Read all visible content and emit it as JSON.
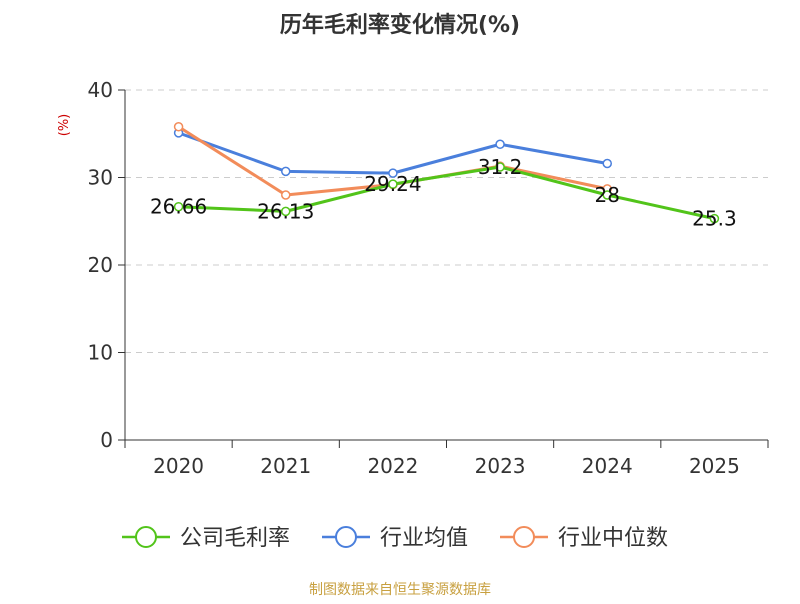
{
  "chart_data": {
    "type": "line",
    "title": "历年毛利率变化情况(%)",
    "ylabel": "(%)",
    "categories": [
      "2020",
      "2021",
      "2022",
      "2023",
      "2024",
      "2025"
    ],
    "ylim": [
      0,
      40
    ],
    "yticks": [
      "0",
      "10",
      "20",
      "30",
      "40"
    ],
    "grid": true,
    "legend_position": "bottom",
    "series": [
      {
        "name": "公司毛利率",
        "color": "#52c41a",
        "values": [
          26.66,
          26.13,
          29.24,
          31.2,
          28,
          25.3
        ],
        "labels": [
          "26.66",
          "26.13",
          "29.24",
          "31.2",
          "28",
          "25.3"
        ]
      },
      {
        "name": "行业均值",
        "color": "#4a7fdc",
        "values": [
          35.1,
          30.7,
          30.5,
          33.8,
          31.6,
          null
        ]
      },
      {
        "name": "行业中位数",
        "color": "#f28c5a",
        "values": [
          35.8,
          28.0,
          29.2,
          31.3,
          28.7,
          null
        ]
      }
    ]
  },
  "source_text": "制图数据来自恒生聚源数据库",
  "colors": {
    "title": "#333333",
    "ylabel": "#cc0000",
    "source": "#c8a040",
    "grid": "#cccccc",
    "axis": "#333333"
  }
}
